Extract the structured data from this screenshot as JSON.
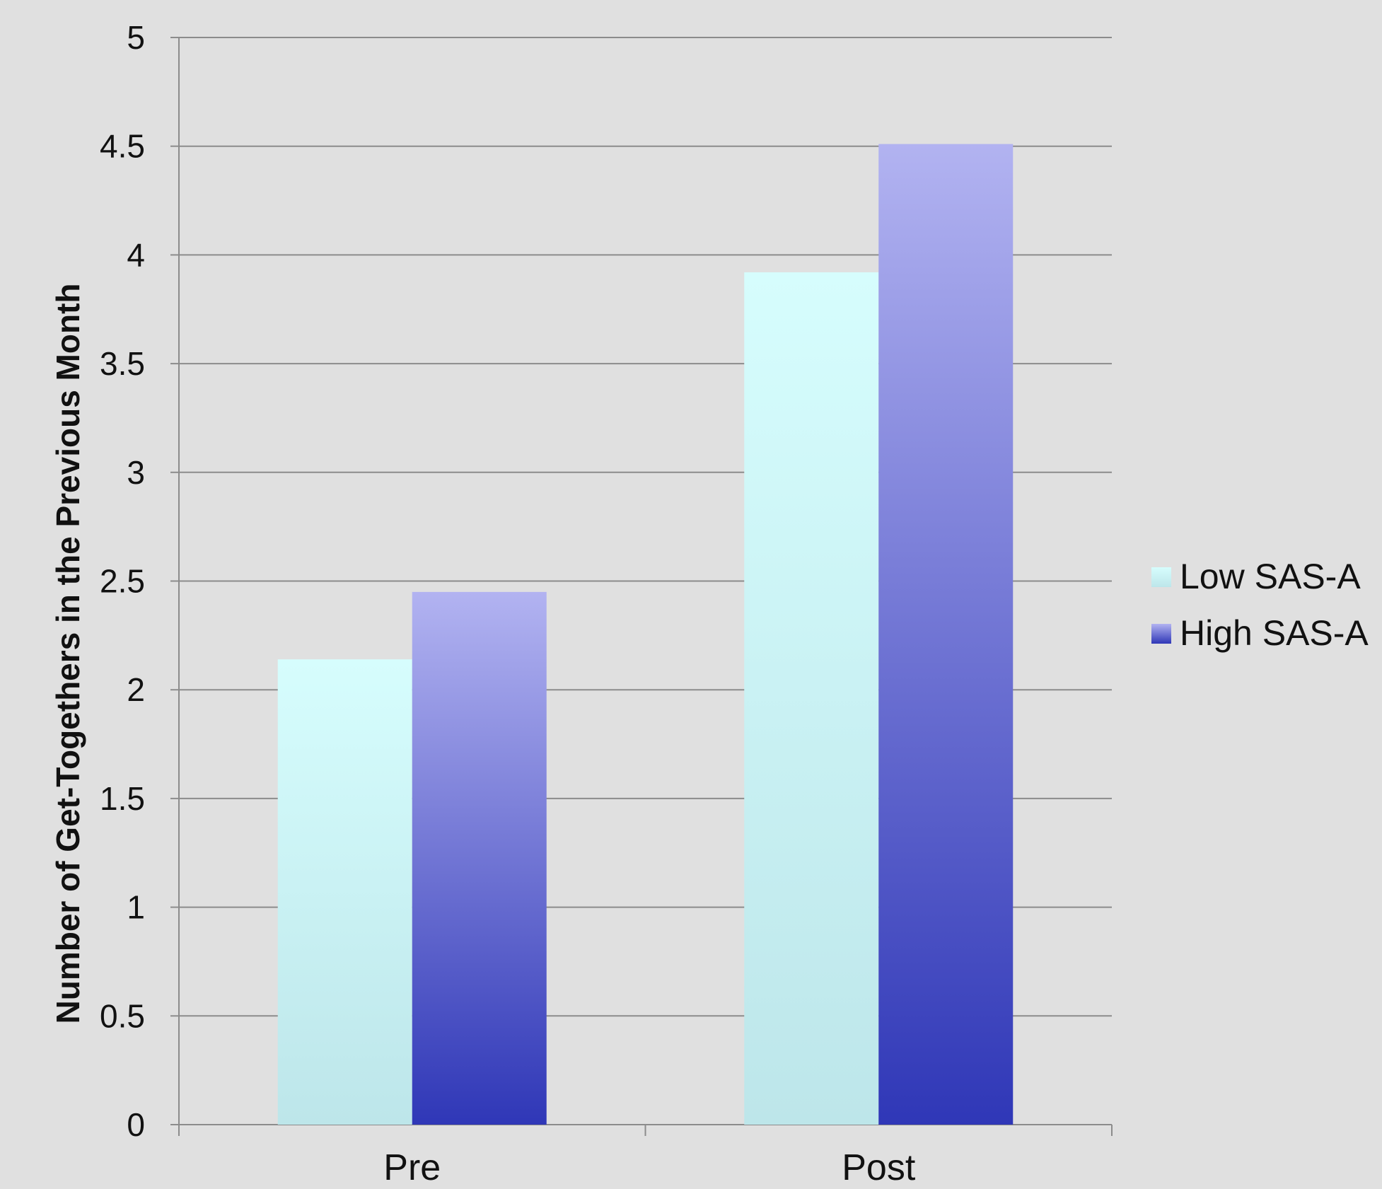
{
  "chart_data": {
    "type": "bar",
    "title": "",
    "xlabel": "",
    "ylabel": "Number of Get-Togethers in the Previous Month",
    "categories": [
      "Pre",
      "Post"
    ],
    "series": [
      {
        "name": "Low SAS-A",
        "values": [
          2.14,
          3.92
        ],
        "color_top": "#d6fdfd",
        "color_bottom": "#bde6ea"
      },
      {
        "name": "High SAS-A",
        "values": [
          2.45,
          4.51
        ],
        "color_top": "#b2b3f1",
        "color_bottom": "#2f37b7"
      }
    ],
    "ylim": [
      0,
      5
    ],
    "yticks": [
      "0",
      "0.5",
      "1",
      "1.5",
      "2",
      "2.5",
      "3",
      "3.5",
      "4",
      "4.5",
      "5"
    ],
    "grid": true,
    "legend_position": "right"
  },
  "colors": {
    "background": "#e0e0e0",
    "gridline": "#8c8c8c",
    "axis": "#8c8c8c"
  }
}
